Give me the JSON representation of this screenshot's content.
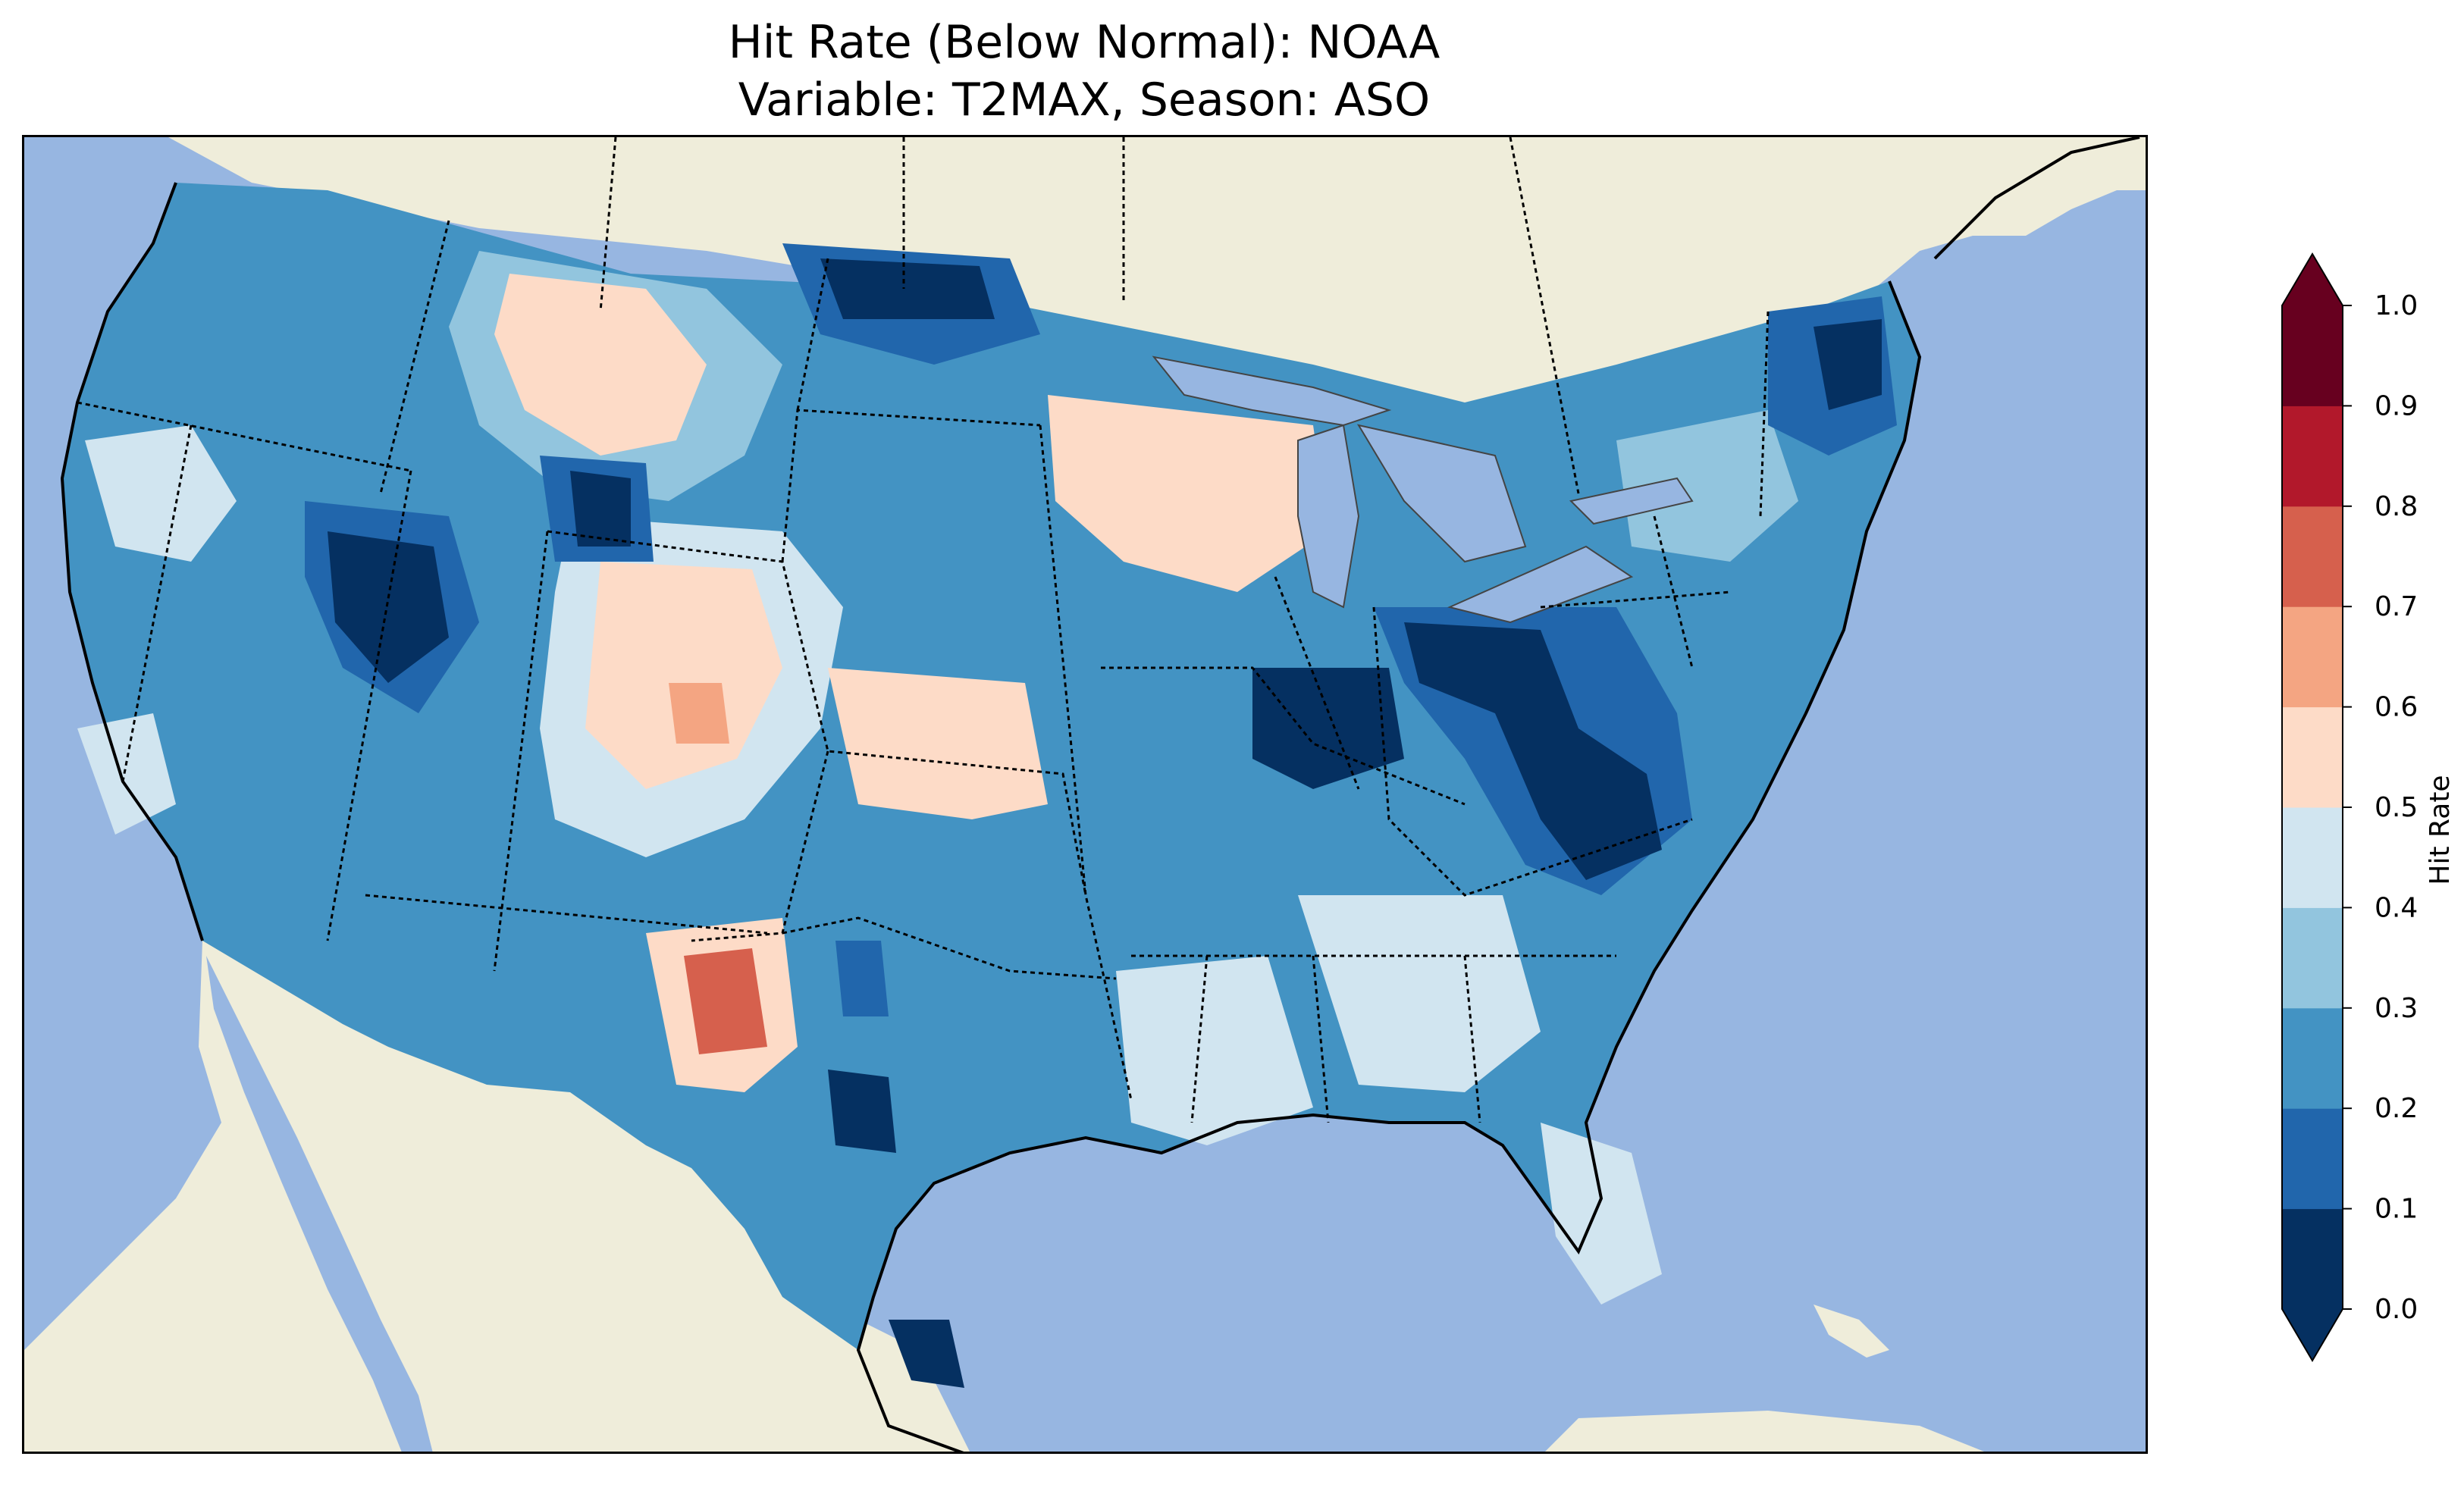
{
  "title": {
    "line1": "Hit Rate (Below Normal): NOAA",
    "line2": "Variable: T2MAX, Season: ASO"
  },
  "colorbar": {
    "label": "Hit Rate",
    "ticks": [
      "0.0",
      "0.1",
      "0.2",
      "0.3",
      "0.4",
      "0.5",
      "0.6",
      "0.7",
      "0.8",
      "0.9",
      "1.0"
    ],
    "colors": [
      "#053061",
      "#2166ac",
      "#4393c3",
      "#92c5de",
      "#d1e5f0",
      "#fddbc7",
      "#f4a582",
      "#d6604d",
      "#b2182b",
      "#67001f"
    ],
    "extend": "both"
  },
  "colors": {
    "ocean": "#97b6e1",
    "land": "#efedda",
    "lake": "#97b6e1"
  }
}
